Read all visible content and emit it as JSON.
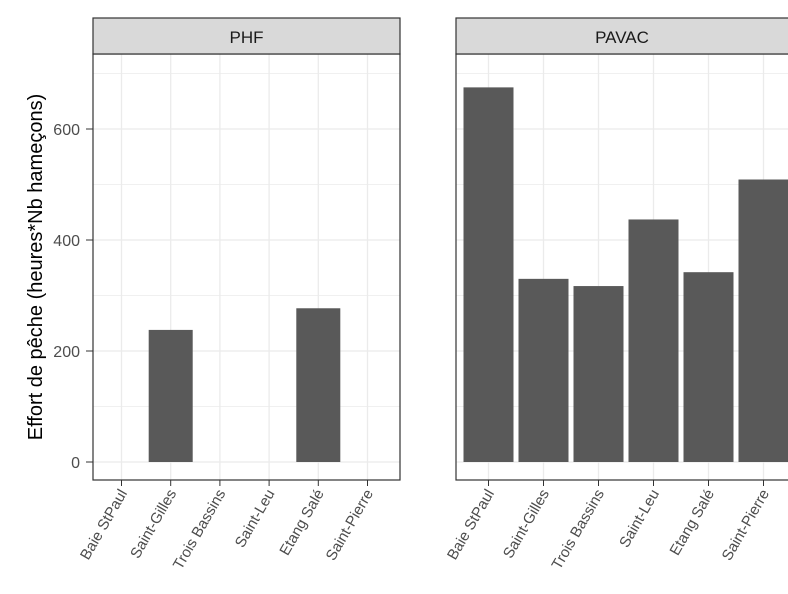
{
  "chart_data": {
    "type": "bar",
    "ylabel": "Effort de pêche (heures*Nb hameçons)",
    "xlabel": "",
    "ylim": [
      0,
      740
    ],
    "yticks": [
      0,
      200,
      400,
      600
    ],
    "grid": true,
    "categories": [
      "Baie StPaul",
      "Saint-Gilles",
      "Trois Bassins",
      "Saint-Leu",
      "Etang Salé",
      "Saint-Pierre"
    ],
    "panels": [
      {
        "name": "PHF",
        "values": [
          0,
          238,
          0,
          0,
          277,
          0
        ]
      },
      {
        "name": "PAVAC",
        "values": [
          675,
          330,
          317,
          437,
          342,
          509
        ]
      }
    ],
    "colors": {
      "bar": "#595959",
      "strip": "#d9d9d9",
      "grid": "#ebebeb",
      "border": "#333333",
      "text": "#4d4d4d"
    }
  }
}
